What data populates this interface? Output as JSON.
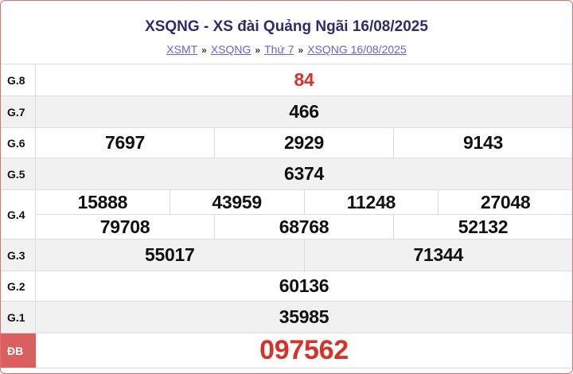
{
  "header": {
    "title": "XSQNG - XS đài Quảng Ngãi 16/08/2025",
    "breadcrumb": [
      "XSMT",
      "XSQNG",
      "Thứ 7",
      "XSQNG 16/08/2025"
    ],
    "separator": "»"
  },
  "colors": {
    "accent_red": "#d8312a",
    "title": "#2c2c6e",
    "link": "#6a5ce8",
    "special_label_bg": "#d9605e"
  },
  "prizes": [
    {
      "label": "G.8",
      "lines": [
        [
          "84"
        ]
      ]
    },
    {
      "label": "G.7",
      "lines": [
        [
          "466"
        ]
      ]
    },
    {
      "label": "G.6",
      "lines": [
        [
          "7697",
          "2929",
          "9143"
        ]
      ]
    },
    {
      "label": "G.5",
      "lines": [
        [
          "6374"
        ]
      ]
    },
    {
      "label": "G.4",
      "lines": [
        [
          "15888",
          "43959",
          "11248",
          "27048"
        ],
        [
          "79708",
          "68768",
          "52132"
        ]
      ]
    },
    {
      "label": "G.3",
      "lines": [
        [
          "55017",
          "71344"
        ]
      ]
    },
    {
      "label": "G.2",
      "lines": [
        [
          "60136"
        ]
      ]
    },
    {
      "label": "G.1",
      "lines": [
        [
          "35985"
        ]
      ]
    },
    {
      "label": "ĐB",
      "lines": [
        [
          "097562"
        ]
      ]
    }
  ]
}
